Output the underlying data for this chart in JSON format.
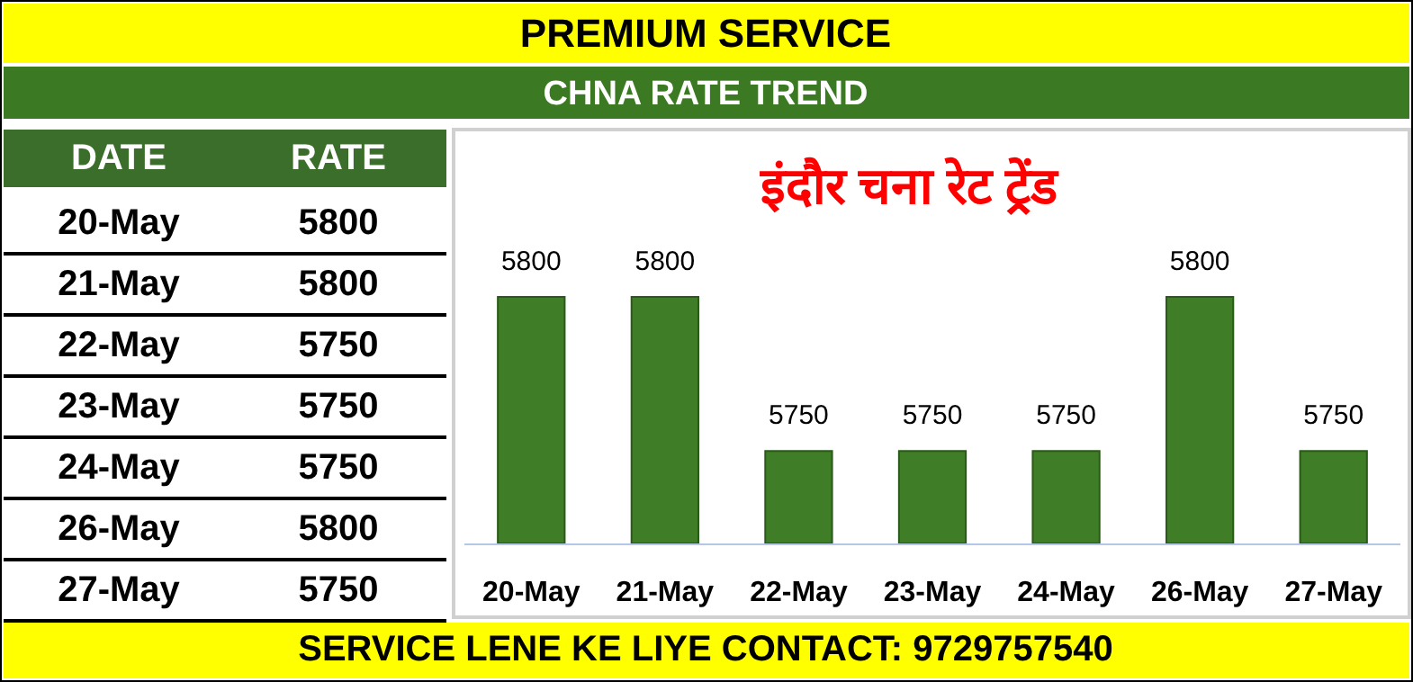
{
  "chart_data": {
    "type": "bar",
    "title": "इंदौर चना रेट ट्रेंड",
    "categories": [
      "20-May",
      "21-May",
      "22-May",
      "23-May",
      "24-May",
      "26-May",
      "27-May"
    ],
    "values": [
      5800,
      5800,
      5750,
      5750,
      5750,
      5800,
      5750
    ],
    "color": "#3f7d26",
    "ylim": [
      5720,
      5800
    ],
    "data_labels": true,
    "tick_labels": "x",
    "annotations": [
      "PREMIUM SERVICE",
      "CHNA RATE TREND",
      "DATE",
      "RATE",
      "SERVICE LENE KE LIYE CONTACT: 9729757540",
      "5800",
      "5800",
      "5750",
      "5750",
      "5750",
      "5800",
      "5750"
    ]
  }
}
